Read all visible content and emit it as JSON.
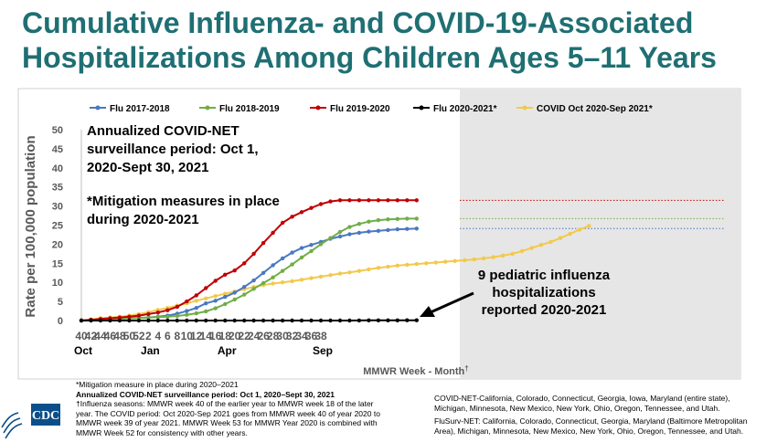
{
  "title": {
    "line1": "Cumulative Influenza- and COVID-19-Associated",
    "line2": "Hospitalizations Among Children Ages 5–11 Years"
  },
  "chart_data": {
    "type": "line",
    "title": "Cumulative Influenza- and COVID-19-Associated Hospitalizations Among Children Ages 5–11 Years",
    "xlabel": "MMWR Week - Month",
    "xlabel_mark": "†",
    "ylabel": "Rate per 100,000 population",
    "ylim": [
      0,
      50
    ],
    "yticks": [
      0,
      5,
      10,
      15,
      20,
      25,
      30,
      35,
      40,
      45,
      50
    ],
    "x_tick_labels": [
      "40",
      "42",
      "44",
      "46",
      "48",
      "50",
      "52",
      "2",
      "4",
      "6",
      "8",
      "10",
      "12",
      "14",
      "16",
      "18",
      "20",
      "22",
      "24",
      "26",
      "28",
      "30",
      "32",
      "34",
      "36",
      "38"
    ],
    "month_labels": [
      {
        "label": "Oct",
        "tick": "40"
      },
      {
        "label": "Jan",
        "tick": "2"
      },
      {
        "label": "Apr",
        "tick": "18"
      },
      {
        "label": "Sep",
        "tick": "38"
      }
    ],
    "grid": false,
    "legend_position": "top",
    "series": [
      {
        "name": "Flu 2017-2018",
        "color": "#4a78c2",
        "values": [
          0,
          0.2,
          0.3,
          0.4,
          0.5,
          0.6,
          0.7,
          0.8,
          1,
          1.3,
          1.8,
          2.5,
          3.3,
          4.5,
          5.2,
          6.2,
          7.3,
          8.8,
          10.5,
          12.5,
          14.5,
          16.3,
          17.8,
          19,
          19.8,
          20.6,
          21.4,
          22,
          22.6,
          23,
          23.3,
          23.5,
          23.7,
          23.9,
          24,
          24.1
        ],
        "projection": 24.1
      },
      {
        "name": "Flu 2018-2019",
        "color": "#70ad47",
        "values": [
          0,
          0.2,
          0.3,
          0.4,
          0.5,
          0.6,
          0.7,
          0.8,
          0.9,
          1,
          1.2,
          1.5,
          1.9,
          2.4,
          3.2,
          4.3,
          5.5,
          6.8,
          8.3,
          9.8,
          11.3,
          13,
          14.7,
          16.5,
          18.2,
          20,
          21.6,
          23.2,
          24.5,
          25.3,
          25.9,
          26.3,
          26.5,
          26.6,
          26.7,
          26.7
        ],
        "projection": 26.7
      },
      {
        "name": "Flu 2019-2020",
        "color": "#c00000",
        "values": [
          0,
          0.2,
          0.4,
          0.6,
          0.8,
          1,
          1.3,
          1.7,
          2.1,
          2.7,
          3.6,
          5,
          6.6,
          8.5,
          10.4,
          12,
          13.1,
          15,
          17.5,
          20.3,
          23,
          25.6,
          27.2,
          28.4,
          29.5,
          30.5,
          31.2,
          31.5,
          31.5,
          31.5,
          31.5,
          31.5,
          31.5,
          31.5,
          31.5,
          31.5
        ],
        "projection": 31.5
      },
      {
        "name": "Flu 2020-2021*",
        "color": "#000000",
        "values": [
          0,
          0,
          0,
          0,
          0,
          0,
          0,
          0,
          0,
          0,
          0,
          0,
          0,
          0,
          0,
          0,
          0,
          0,
          0,
          0,
          0,
          0,
          0,
          0,
          0,
          0,
          0,
          0,
          0,
          0.02,
          0.05,
          0.05,
          0.05,
          0.05,
          0.06,
          0.06
        ]
      },
      {
        "name": "COVID Oct 2020-Sep 2021*",
        "color": "#f2c94c",
        "values": [
          0,
          0.3,
          0.6,
          0.8,
          1,
          1.3,
          1.7,
          2.2,
          2.8,
          3.3,
          3.9,
          4.5,
          5.2,
          5.8,
          6.4,
          7,
          7.6,
          8.2,
          8.8,
          9.3,
          9.7,
          10,
          10.3,
          10.7,
          11.1,
          11.5,
          11.9,
          12.3,
          12.6,
          13,
          13.4,
          13.8,
          14.1,
          14.4,
          14.6,
          14.8,
          15,
          15.2,
          15.4,
          15.6,
          15.8,
          16,
          16.3,
          16.6,
          17,
          17.5,
          18.2,
          19,
          19.8,
          20.6,
          21.6,
          22.7,
          23.8,
          24.8
        ]
      }
    ],
    "annotations": {
      "surveillance_note": [
        "Annualized COVID-NET",
        "surveillance period: Oct 1,",
        "2020-Sept 30, 2021"
      ],
      "mitigation_note": [
        "*Mitigation measures in place",
        "during 2020-2021"
      ],
      "pediatric_note": [
        "9 pediatric influenza",
        "hospitalizations",
        "reported 2020-2021"
      ]
    }
  },
  "footnotes": {
    "left": [
      "*Mitigation measure in place during 2020–2021",
      "Annualized COVID-NET surveillance period: Oct 1, 2020–Sept 30, 2021",
      "†Influenza seasons: MMWR week 40 of the earlier year to MMWR week 18 of the later",
      "year. The COVID period: Oct 2020-Sep 2021 goes from MMWR week 40 of year 2020 to",
      "MMWR week 39 of year 2021. MMWR Week 53 for MMWR Year 2020 is combined with",
      "MMWR Week 52 for consistency with other years."
    ],
    "right": [
      "COVID-NET-California, Colorado, Connecticut, Georgia, Iowa, Maryland (entire state),",
      "Michigan, Minnesota, New Mexico, New York, Ohio, Oregon, Tennessee, and Utah.",
      "FluSurv-NET: California, Colorado, Connecticut, Georgia, Maryland (Baltimore Metropolitan",
      "Area), Michigan, Minnesota, New Mexico, New York, Ohio, Oregon, Tennessee, and Utah."
    ]
  },
  "logo": {
    "text": "CDC",
    "color": "#0b4f8a"
  }
}
